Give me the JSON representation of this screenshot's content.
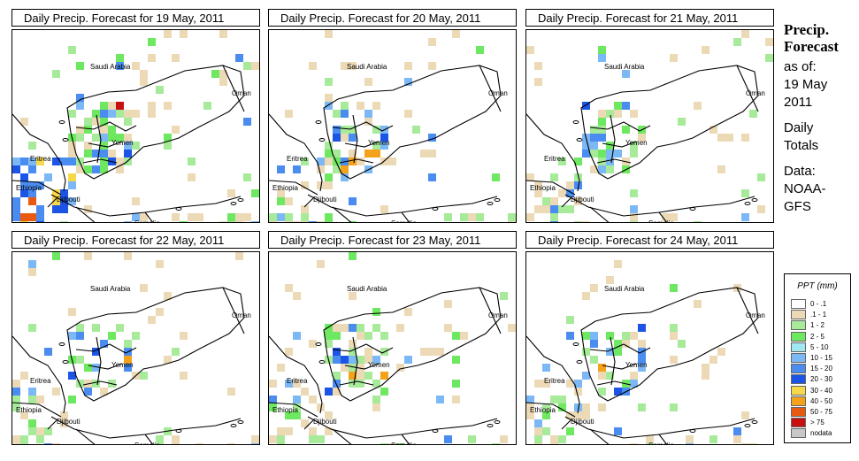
{
  "panels": [
    {
      "title": "Daily Precip. Forecast for  19 May, 2011",
      "seed": 19,
      "wet": 1.0
    },
    {
      "title": "Daily Precip. Forecast for  20 May, 2011",
      "seed": 20,
      "wet": 0.55
    },
    {
      "title": "Daily Precip. Forecast for  21 May, 2011",
      "seed": 21,
      "wet": 0.65
    },
    {
      "title": "Daily Precip. Forecast for  22 May, 2011",
      "seed": 22,
      "wet": 0.6
    },
    {
      "title": "Daily Precip. Forecast for  23 May, 2011",
      "seed": 23,
      "wet": 0.7
    },
    {
      "title": "Daily Precip. Forecast for  24 May, 2011",
      "seed": 24,
      "wet": 0.6
    }
  ],
  "map_labels": {
    "saudi_arabia": "Saudi Arabia",
    "oman": "Oman",
    "yemen": "Yemen",
    "eritrea": "Eritrea",
    "ethiopia": "Ethiopia",
    "djibouti": "Djibouti",
    "somalia": "Somalia"
  },
  "side": {
    "title": "Precip. Forecast",
    "as_of_label": "as of:",
    "date": "19 May 2011",
    "totals": "Daily Totals",
    "data_label": "Data:",
    "source": "NOAA-GFS"
  },
  "legend": {
    "title": "PPT (mm)",
    "items": [
      {
        "label": "0 - .1",
        "color": "#ffffff"
      },
      {
        "label": ".1 - 1",
        "color": "#ecd9b6"
      },
      {
        "label": "1 - 2",
        "color": "#a6ea9a"
      },
      {
        "label": "2 - 5",
        "color": "#6ee860"
      },
      {
        "label": "5 - 10",
        "color": "#9fe8f0"
      },
      {
        "label": "10 - 15",
        "color": "#7cb8f5"
      },
      {
        "label": "15 - 20",
        "color": "#4a8cf0"
      },
      {
        "label": "20 - 30",
        "color": "#1c55e6"
      },
      {
        "label": "30 - 40",
        "color": "#f7d84a"
      },
      {
        "label": "40 - 50",
        "color": "#f5a21b"
      },
      {
        "label": "50 - 75",
        "color": "#e85a10"
      },
      {
        "label": "> 75",
        "color": "#c81010"
      },
      {
        "label": "nodata",
        "color": "#c8c8c8"
      }
    ]
  }
}
